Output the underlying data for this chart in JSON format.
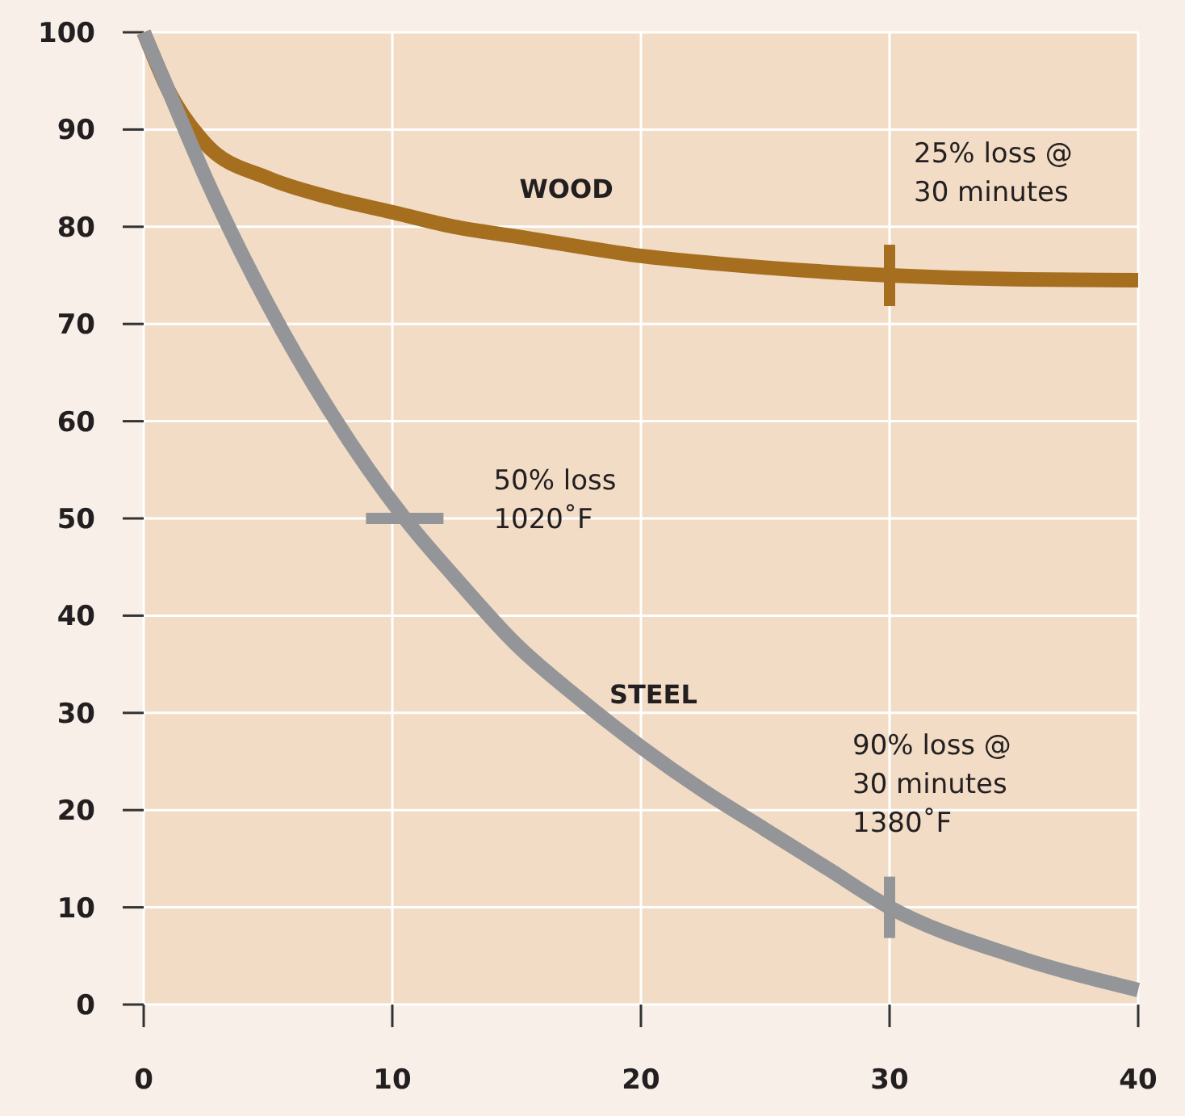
{
  "chart_data": {
    "type": "line",
    "xlim": [
      0,
      40
    ],
    "ylim": [
      0,
      100
    ],
    "xticks": [
      0,
      10,
      20,
      30,
      40
    ],
    "yticks": [
      0,
      10,
      20,
      30,
      40,
      50,
      60,
      70,
      80,
      90,
      100
    ],
    "grid": true,
    "line_style": "solid",
    "series": [
      {
        "name": "WOOD",
        "color": "#a56f1f",
        "x": [
          0,
          1,
          2.5,
          5,
          7.5,
          10,
          12.5,
          15,
          20,
          25,
          30,
          35,
          40
        ],
        "values": [
          100,
          94,
          88.5,
          85,
          83,
          81.5,
          80,
          79,
          77,
          75.8,
          75,
          74.6,
          74.5
        ]
      },
      {
        "name": "STEEL",
        "color": "#939598",
        "x": [
          0,
          1,
          2.5,
          5,
          7.5,
          10.5,
          12.5,
          15,
          17.5,
          20,
          22.5,
          25,
          27.5,
          30,
          35,
          40
        ],
        "values": [
          100,
          94,
          85,
          72,
          61,
          50,
          44,
          37,
          31.5,
          26.5,
          22,
          18,
          14,
          10,
          5,
          1.5
        ]
      }
    ],
    "annotations": [
      "25% loss @\n30 minutes",
      "50% loss\n1020˚F",
      "90% loss @\n30 minutes\n1380˚F"
    ]
  }
}
